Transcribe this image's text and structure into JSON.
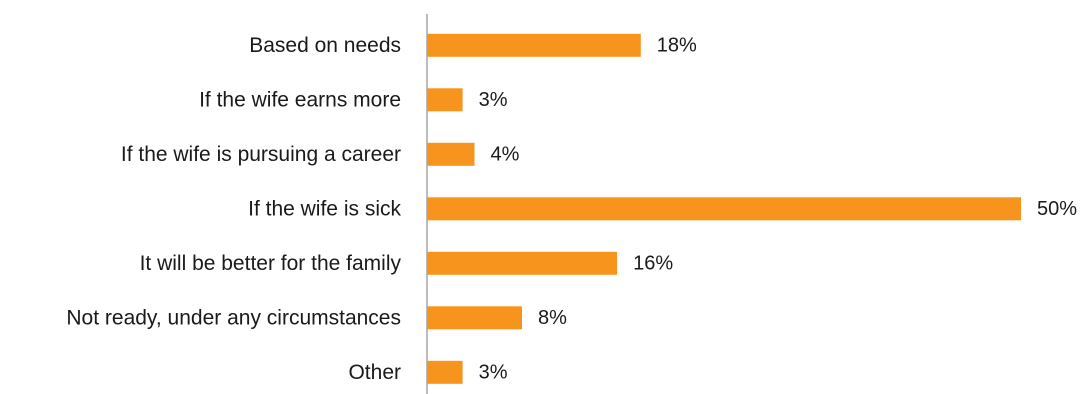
{
  "chart_data": {
    "type": "bar",
    "orientation": "horizontal",
    "categories": [
      "Based on needs",
      "If the wife earns more",
      "If the wife is pursuing a career",
      "If the wife is sick",
      "It will be better for the family",
      "Not ready, under any circumstances",
      "Other"
    ],
    "values": [
      18,
      3,
      4,
      50,
      16,
      8,
      3
    ],
    "value_labels": [
      "18%",
      "3%",
      "4%",
      "50%",
      "16%",
      "8%",
      "3%"
    ],
    "unit": "%",
    "xlim": [
      0,
      50
    ],
    "grid": false,
    "legend": "none",
    "bar_color": "#F7941D",
    "axis_color": "#A6A6A6"
  }
}
